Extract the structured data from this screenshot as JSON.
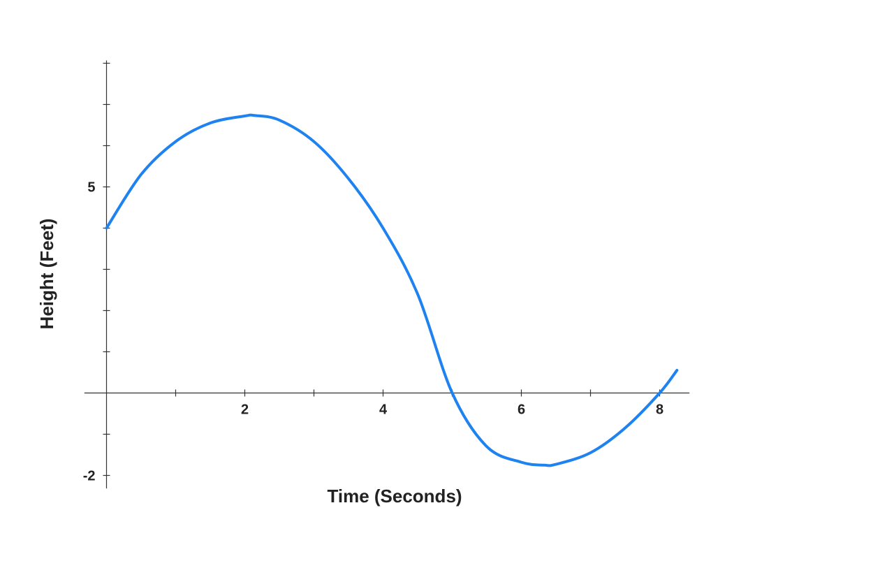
{
  "chart_data": {
    "type": "line",
    "title": "",
    "xlabel": "Time (Seconds)",
    "ylabel": "Height (Feet)",
    "xlim": [
      -0.32,
      8.35
    ],
    "ylim": [
      -2.35,
      8.0
    ],
    "x_ticks": [
      1,
      2,
      3,
      4,
      5,
      6,
      7,
      8
    ],
    "x_tick_labels": [
      {
        "value": 2,
        "label": "2"
      },
      {
        "value": 4,
        "label": "4"
      },
      {
        "value": 6,
        "label": "6"
      },
      {
        "value": 8,
        "label": "8"
      }
    ],
    "y_ticks": [
      -2,
      -1,
      1,
      2,
      3,
      4,
      5,
      6,
      7,
      8
    ],
    "y_tick_labels": [
      {
        "value": 5,
        "label": "5"
      },
      {
        "value": -2,
        "label": "-2"
      }
    ],
    "grid": false,
    "color": "#1E82F0",
    "series": [
      {
        "x": [
          0,
          0.5,
          1.0,
          1.5,
          2.0,
          2.15,
          2.5,
          3.0,
          3.5,
          4.0,
          4.5,
          5.0,
          5.5,
          6.0,
          6.33,
          6.5,
          7.0,
          7.5,
          8.0,
          8.25
        ],
        "y": [
          4.0,
          5.3,
          6.1,
          6.55,
          6.72,
          6.73,
          6.62,
          6.1,
          5.2,
          4.0,
          2.4,
          0.0,
          -1.3,
          -1.68,
          -1.75,
          -1.73,
          -1.45,
          -0.85,
          0.0,
          0.55
        ]
      }
    ]
  }
}
